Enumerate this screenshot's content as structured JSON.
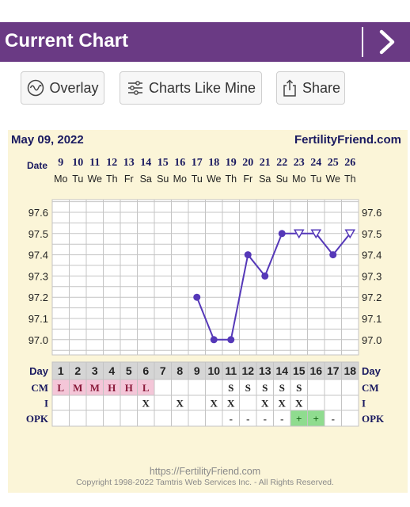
{
  "header": {
    "title": "Current Chart"
  },
  "toolbar": {
    "overlay_label": "Overlay",
    "charts_like_mine_label": "Charts Like Mine",
    "share_label": "Share"
  },
  "chart_header": {
    "date": "May 09, 2022",
    "brand": "FertilityFriend.com"
  },
  "footer": {
    "url": "https://FertilityFriend.com",
    "copyright": "Copyright 1998-2022 Tamtris Web Services Inc. - All Rights Reserved."
  },
  "chart_data": {
    "type": "line",
    "row_labels": {
      "date": "Date",
      "day": "Day",
      "cm": "CM",
      "i": "I",
      "opk": "OPK"
    },
    "dates": [
      "9",
      "10",
      "11",
      "12",
      "13",
      "14",
      "15",
      "16",
      "17",
      "18",
      "19",
      "20",
      "21",
      "22",
      "23",
      "24",
      "25",
      "26"
    ],
    "weekdays": [
      "Mo",
      "Tu",
      "We",
      "Th",
      "Fr",
      "Sa",
      "Su",
      "Mo",
      "Tu",
      "We",
      "Th",
      "Fr",
      "Sa",
      "Su",
      "Mo",
      "Tu",
      "We",
      "Th"
    ],
    "cycle_days": [
      "1",
      "2",
      "3",
      "4",
      "5",
      "6",
      "7",
      "8",
      "9",
      "10",
      "11",
      "12",
      "13",
      "14",
      "15",
      "16",
      "17",
      "18"
    ],
    "y_ticks": [
      "97.6",
      "97.5",
      "97.4",
      "97.3",
      "97.2",
      "97.1",
      "97.0"
    ],
    "ylim": [
      96.95,
      97.65
    ],
    "temperatures": [
      null,
      null,
      null,
      null,
      null,
      null,
      null,
      null,
      97.2,
      97.0,
      97.0,
      97.4,
      97.3,
      97.5,
      97.5,
      97.5,
      97.4,
      97.5
    ],
    "open_markers": [
      false,
      false,
      false,
      false,
      false,
      false,
      false,
      false,
      false,
      false,
      false,
      false,
      false,
      false,
      true,
      true,
      false,
      true
    ],
    "cm": [
      "L",
      "M",
      "M",
      "H",
      "H",
      "L",
      "",
      "",
      "",
      "",
      "S",
      "S",
      "S",
      "S",
      "S",
      "",
      "",
      ""
    ],
    "intercourse": [
      "",
      "",
      "",
      "",
      "",
      "X",
      "",
      "X",
      "",
      "X",
      "X",
      "",
      "X",
      "X",
      "X",
      "",
      "",
      ""
    ],
    "opk": [
      "",
      "",
      "",
      "",
      "",
      "",
      "",
      "",
      "",
      "",
      "-",
      "-",
      "-",
      "-",
      "+",
      "+",
      "-",
      ""
    ],
    "colors": {
      "line": "#5538b8",
      "cm_highlight": "#f4c6d8",
      "opk_positive": "#8fdc8f",
      "grid": "#c4c4c4",
      "day_row": "#d5d5d5"
    }
  }
}
